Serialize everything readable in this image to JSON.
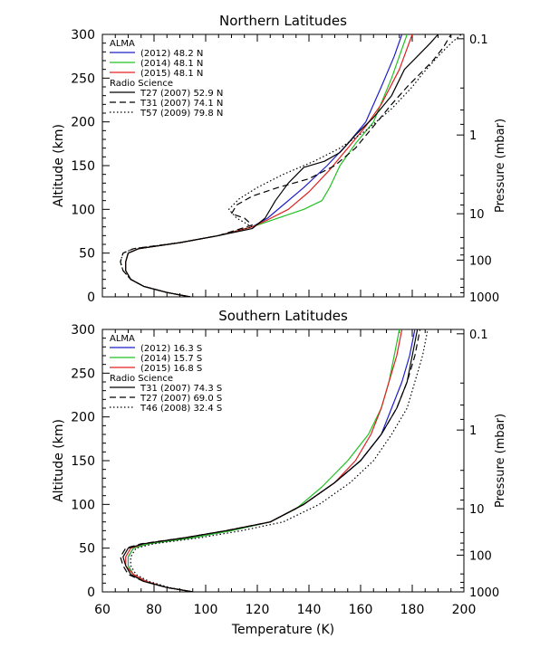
{
  "figure": {
    "xlabel": "Temperature (K)",
    "x_ticks": [
      "60",
      "80",
      "100",
      "120",
      "140",
      "160",
      "180",
      "200"
    ]
  },
  "chart_data": [
    {
      "type": "line",
      "title": "Northern Latitudes",
      "xlabel": "Temperature (K)",
      "ylabel": "Altitude (km)",
      "y2label": "Pressure (mbar)",
      "xlim": [
        60,
        200
      ],
      "ylim": [
        0,
        300
      ],
      "y_ticks": [
        0,
        50,
        100,
        150,
        200,
        250,
        300
      ],
      "y2_ticks": [
        {
          "label": "0.1",
          "altitude": 295
        },
        {
          "label": "1",
          "altitude": 185
        },
        {
          "label": "10",
          "altitude": 95
        },
        {
          "label": "100",
          "altitude": 42
        },
        {
          "label": "1000",
          "altitude": 0
        }
      ],
      "legend": {
        "position": "top-left",
        "groups": [
          {
            "title": "ALMA",
            "entries": [
              {
                "label": "(2012) 48.2 N",
                "series": 0
              },
              {
                "label": "(2014) 48.1 N",
                "series": 1
              },
              {
                "label": "(2015) 48.1 N",
                "series": 2
              }
            ]
          },
          {
            "title": "Radio Science",
            "entries": [
              {
                "label": "T27 (2007) 52.9 N",
                "series": 3
              },
              {
                "label": "T31 (2007) 74.1 N",
                "series": 4
              },
              {
                "label": "T57 (2009) 79.8 N",
                "series": 5
              }
            ]
          }
        ]
      },
      "series": [
        {
          "name": "(2012) 48.2 N",
          "color": "#1e1ec8",
          "dash": "solid",
          "x": [
            94,
            85,
            76,
            71,
            69,
            69,
            70,
            74,
            90,
            105,
            118,
            124,
            130,
            138,
            147,
            155,
            162,
            168,
            173,
            176
          ],
          "y": [
            0,
            5,
            12,
            20,
            30,
            40,
            50,
            55,
            62,
            70,
            80,
            90,
            105,
            125,
            150,
            175,
            200,
            240,
            275,
            300
          ]
        },
        {
          "name": "(2014) 48.1 N",
          "color": "#22c022",
          "dash": "solid",
          "x": [
            94,
            85,
            76,
            71,
            69,
            69,
            70,
            74,
            90,
            105,
            118,
            126,
            138,
            145,
            148,
            152,
            158,
            165,
            172,
            178
          ],
          "y": [
            0,
            5,
            12,
            20,
            30,
            40,
            50,
            55,
            62,
            70,
            80,
            88,
            100,
            110,
            125,
            150,
            175,
            200,
            250,
            300
          ]
        },
        {
          "name": "(2015) 48.1 N",
          "color": "#e02020",
          "dash": "solid",
          "x": [
            94,
            85,
            76,
            71,
            69,
            69,
            70,
            74,
            90,
            105,
            118,
            124,
            132,
            140,
            148,
            155,
            162,
            168,
            175,
            180
          ],
          "y": [
            0,
            5,
            12,
            20,
            30,
            40,
            50,
            55,
            62,
            70,
            80,
            88,
            100,
            120,
            145,
            170,
            195,
            220,
            260,
            300
          ]
        },
        {
          "name": "T27 (2007) 52.9 N",
          "color": "#000000",
          "dash": "solid",
          "x": [
            94,
            85,
            76,
            71,
            69,
            69,
            70,
            74,
            90,
            105,
            118,
            123,
            127,
            132,
            138,
            146,
            152,
            158,
            165,
            172,
            177,
            182,
            187,
            190
          ],
          "y": [
            0,
            5,
            12,
            20,
            30,
            40,
            50,
            55,
            62,
            70,
            78,
            90,
            110,
            130,
            148,
            155,
            165,
            185,
            205,
            230,
            260,
            275,
            290,
            300
          ]
        },
        {
          "name": "T31 (2007) 74.1 N",
          "color": "#000000",
          "dash": "dashed",
          "x": [
            94,
            85,
            76,
            71,
            68,
            67,
            68,
            72,
            90,
            105,
            118,
            115,
            110,
            112,
            118,
            128,
            140,
            150,
            158,
            165,
            172,
            178,
            183,
            188,
            192,
            195
          ],
          "y": [
            0,
            5,
            12,
            20,
            30,
            40,
            50,
            55,
            62,
            70,
            82,
            90,
            95,
            105,
            115,
            125,
            135,
            150,
            170,
            195,
            220,
            240,
            255,
            270,
            285,
            300
          ]
        },
        {
          "name": "T57 (2009) 79.8 N",
          "color": "#000000",
          "dash": "dotted",
          "x": [
            94,
            85,
            76,
            71,
            68,
            67,
            68,
            72,
            90,
            105,
            118,
            112,
            109,
            113,
            120,
            130,
            142,
            152,
            162,
            172,
            180,
            184,
            190,
            195,
            199
          ],
          "y": [
            0,
            5,
            12,
            20,
            30,
            40,
            50,
            55,
            62,
            70,
            80,
            90,
            100,
            112,
            125,
            140,
            155,
            170,
            190,
            215,
            240,
            255,
            275,
            290,
            300
          ]
        }
      ]
    },
    {
      "type": "line",
      "title": "Southern Latitudes",
      "xlabel": "Temperature (K)",
      "ylabel": "Altitude (km)",
      "y2label": "Pressure (mbar)",
      "xlim": [
        60,
        200
      ],
      "ylim": [
        0,
        300
      ],
      "y_ticks": [
        0,
        50,
        100,
        150,
        200,
        250,
        300
      ],
      "y2_ticks": [
        {
          "label": "0.1",
          "altitude": 295
        },
        {
          "label": "1",
          "altitude": 185
        },
        {
          "label": "10",
          "altitude": 95
        },
        {
          "label": "100",
          "altitude": 42
        },
        {
          "label": "1000",
          "altitude": 0
        }
      ],
      "legend": {
        "position": "top-left",
        "groups": [
          {
            "title": "ALMA",
            "entries": [
              {
                "label": "(2012) 16.3 S",
                "series": 0
              },
              {
                "label": "(2014) 15.7 S",
                "series": 1
              },
              {
                "label": "(2015) 16.8 S",
                "series": 2
              }
            ]
          },
          {
            "title": "Radio Science",
            "entries": [
              {
                "label": "T31 (2007) 74.3 S",
                "series": 3
              },
              {
                "label": "T27 (2007) 69.0 S",
                "series": 4
              },
              {
                "label": "T46 (2008) 32.4 S",
                "series": 5
              }
            ]
          }
        ]
      },
      "series": [
        {
          "name": "(2012) 16.3 S",
          "color": "#1e1ec8",
          "dash": "solid",
          "x": [
            95,
            85,
            77,
            72,
            70,
            70,
            72,
            78,
            95,
            110,
            125,
            138,
            150,
            160,
            168,
            172,
            176,
            179,
            181
          ],
          "y": [
            0,
            5,
            12,
            20,
            30,
            40,
            50,
            55,
            62,
            70,
            80,
            100,
            125,
            150,
            180,
            210,
            240,
            270,
            300
          ]
        },
        {
          "name": "(2014) 15.7 S",
          "color": "#22c022",
          "dash": "solid",
          "x": [
            95,
            85,
            77,
            72,
            70,
            70,
            72,
            78,
            95,
            110,
            125,
            135,
            145,
            155,
            163,
            168,
            171,
            173,
            175
          ],
          "y": [
            0,
            5,
            12,
            20,
            30,
            40,
            50,
            55,
            62,
            70,
            80,
            95,
            120,
            150,
            180,
            210,
            240,
            270,
            300
          ]
        },
        {
          "name": "(2015) 16.8 S",
          "color": "#e02020",
          "dash": "solid",
          "x": [
            95,
            85,
            77,
            72,
            69,
            69,
            71,
            76,
            92,
            108,
            125,
            138,
            150,
            158,
            164,
            168,
            171,
            174,
            176
          ],
          "y": [
            0,
            5,
            12,
            20,
            30,
            40,
            50,
            55,
            62,
            70,
            80,
            100,
            125,
            150,
            180,
            210,
            240,
            270,
            300
          ]
        },
        {
          "name": "T31 (2007) 74.3 S",
          "color": "#000000",
          "dash": "solid",
          "x": [
            95,
            85,
            76,
            71,
            69,
            68,
            70,
            76,
            92,
            108,
            125,
            138,
            150,
            160,
            168,
            174,
            178,
            180,
            182
          ],
          "y": [
            0,
            5,
            12,
            20,
            30,
            40,
            50,
            55,
            62,
            70,
            80,
            100,
            125,
            150,
            180,
            210,
            240,
            270,
            300
          ]
        },
        {
          "name": "T27 (2007) 69.0 S",
          "color": "#000000",
          "dash": "dashed",
          "x": [
            95,
            85,
            76,
            70,
            68,
            67,
            69,
            75,
            92,
            108,
            125,
            138,
            150,
            160,
            168,
            174,
            178,
            181,
            183
          ],
          "y": [
            0,
            5,
            12,
            20,
            30,
            40,
            50,
            55,
            62,
            70,
            80,
            100,
            125,
            150,
            180,
            210,
            240,
            270,
            300
          ]
        },
        {
          "name": "T46 (2008) 32.4 S",
          "color": "#000000",
          "dash": "dotted",
          "x": [
            95,
            86,
            78,
            73,
            71,
            71,
            73,
            80,
            98,
            114,
            130,
            144,
            156,
            165,
            172,
            178,
            181,
            184,
            186
          ],
          "y": [
            0,
            5,
            12,
            20,
            30,
            40,
            50,
            55,
            62,
            70,
            80,
            100,
            125,
            150,
            180,
            210,
            240,
            270,
            300
          ]
        }
      ]
    }
  ]
}
